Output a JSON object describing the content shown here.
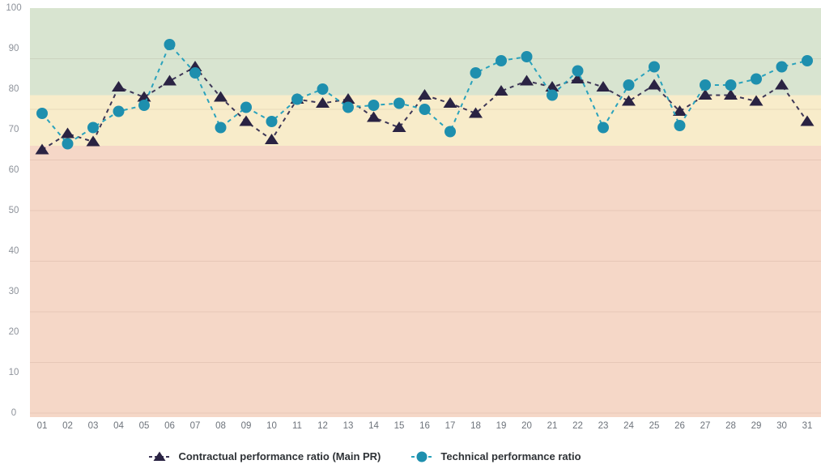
{
  "chart_data": {
    "type": "line",
    "title": "",
    "xlabel": "",
    "ylabel": "",
    "categories": [
      "01",
      "02",
      "03",
      "04",
      "05",
      "06",
      "07",
      "08",
      "09",
      "10",
      "11",
      "12",
      "13",
      "14",
      "15",
      "16",
      "17",
      "18",
      "19",
      "20",
      "21",
      "22",
      "23",
      "24",
      "25",
      "26",
      "27",
      "28",
      "29",
      "30",
      "31"
    ],
    "series": [
      {
        "name": "Contractual performance ratio (Main PR)",
        "marker": "triangle",
        "color": "#2a2343",
        "line_color": "#3e3757",
        "values": [
          65,
          69,
          67,
          80.5,
          78,
          82,
          85.5,
          78,
          72,
          67.5,
          77.5,
          76.5,
          77.5,
          73,
          70.5,
          78.5,
          76.5,
          74,
          79.5,
          82,
          80.5,
          82.5,
          80.5,
          77,
          81,
          74.5,
          78.5,
          78.5,
          77,
          81,
          72
        ]
      },
      {
        "name": "Technical performance ratio",
        "marker": "circle",
        "color": "#1e8fae",
        "line_color": "#2aa2bc",
        "values": [
          74,
          66.5,
          70.5,
          74.5,
          76,
          91,
          84,
          70.5,
          75.5,
          72,
          77.5,
          80,
          75.5,
          76,
          76.5,
          75,
          69.5,
          84,
          87,
          88,
          78.5,
          84.5,
          70.5,
          81,
          85.5,
          71,
          81,
          81,
          82.5,
          85.5,
          87
        ]
      }
    ],
    "ylim": [
      0,
      100
    ],
    "yticks": [
      0,
      10,
      20,
      30,
      40,
      50,
      60,
      70,
      80,
      90,
      100
    ],
    "bands": [
      {
        "label": "good-zone",
        "from": 78.5,
        "to": 100,
        "color": "#d8e4d0"
      },
      {
        "label": "warning-zone",
        "from": 66,
        "to": 78.5,
        "color": "#f8ecca"
      },
      {
        "label": "critical-zone",
        "from": 0,
        "to": 66,
        "color": "#f5d7c7"
      }
    ],
    "gridlines": [
      87.5,
      75,
      62.5,
      50,
      37.5,
      25,
      12.5,
      0
    ],
    "grid": "on",
    "legend_position": "bottom"
  }
}
